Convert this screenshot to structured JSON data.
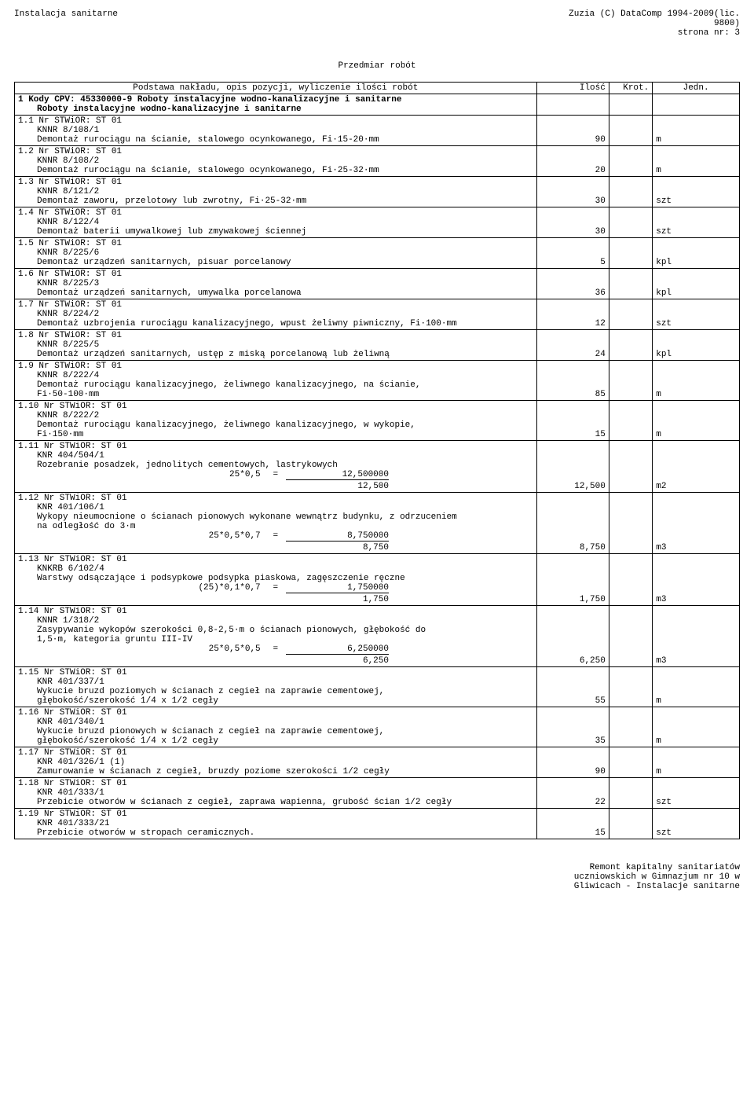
{
  "header": {
    "left": "Instalacja sanitarne",
    "right1": "Zuzia (C) DataComp 1994-2009(lic.",
    "right2": "9800)",
    "right3": "strona nr:    3"
  },
  "title": "Przedmiar robót",
  "columns": {
    "desc": "Podstawa nakładu, opis pozycji, wyliczenie ilości robót",
    "qty": "Ilość",
    "krot": "Krot.",
    "unit": "Jedn."
  },
  "section": {
    "l1": "1 Kody CPV: 45330000-9  Roboty instalacyjne wodno-kanalizacyjne i sanitarne",
    "l2": "Roboty instalacyjne wodno-kanalizacyjne i sanitarne"
  },
  "rows": [
    {
      "num": "1.1 Nr STWiOR: ST 01",
      "code": "KNNR 8/108/1",
      "desc": "Demontaż rurociągu na ścianie, stalowego ocynkowanego, Fi·15-20·mm",
      "qty": "90",
      "unit": "m"
    },
    {
      "num": "1.2 Nr STWiOR: ST 01",
      "code": "KNNR 8/108/2",
      "desc": "Demontaż rurociągu na ścianie, stalowego ocynkowanego, Fi·25-32·mm",
      "qty": "20",
      "unit": "m"
    },
    {
      "num": "1.3 Nr STWiOR: ST 01",
      "code": "KNNR 8/121/2",
      "desc": "Demontaż zaworu, przelotowy lub zwrotny, Fi·25-32·mm",
      "qty": "30",
      "unit": "szt"
    },
    {
      "num": "1.4 Nr STWiOR: ST 01",
      "code": "KNNR 8/122/4",
      "desc": "Demontaż baterii umywalkowej lub zmywakowej ściennej",
      "qty": "30",
      "unit": "szt"
    },
    {
      "num": "1.5 Nr STWiOR: ST 01",
      "code": "KNNR 8/225/6",
      "desc": "Demontaż urządzeń sanitarnych, pisuar porcelanowy",
      "qty": "5",
      "unit": "kpl"
    },
    {
      "num": "1.6 Nr STWiOR: ST 01",
      "code": "KNNR 8/225/3",
      "desc": "Demontaż urządzeń sanitarnych, umywalka porcelanowa",
      "qty": "36",
      "unit": "kpl"
    },
    {
      "num": "1.7 Nr STWiOR: ST 01",
      "code": "KNNR 8/224/2",
      "desc": "Demontaż uzbrojenia rurociągu kanalizacyjnego, wpust żeliwny piwniczny, Fi·100·mm",
      "qty": "12",
      "unit": "szt"
    },
    {
      "num": "1.8 Nr STWiOR: ST 01",
      "code": "KNNR 8/225/5",
      "desc": "Demontaż urządzeń sanitarnych, ustęp z miską porcelanową lub żeliwną",
      "qty": "24",
      "unit": "kpl"
    },
    {
      "num": "1.9 Nr STWiOR: ST 01",
      "code": "KNNR 8/222/4",
      "desc": "Demontaż rurociągu kanalizacyjnego, żeliwnego kanalizacyjnego, na ścianie,",
      "desc2": "Fi·50-100·mm",
      "qty": "85",
      "unit": "m"
    },
    {
      "num": "1.10 Nr STWiOR: ST 01",
      "code": "KNNR 8/222/2",
      "desc": "Demontaż rurociągu kanalizacyjnego, żeliwnego kanalizacyjnego, w wykopie,",
      "desc2": "Fi·150·mm",
      "qty": "15",
      "unit": "m"
    },
    {
      "num": "1.11 Nr STWiOR: ST 01",
      "code": "KNR 404/504/1",
      "desc": "Rozebranie posadzek, jednolitych cementowych, lastrykowych",
      "calc_expr": "25*0,5",
      "calc_val": "12,500000",
      "sum": "12,500",
      "qty": "12,500",
      "unit": "m2"
    },
    {
      "num": "1.12 Nr STWiOR: ST 01",
      "code": "KNR 401/106/1",
      "desc": "Wykopy nieumocnione o ścianach pionowych wykonane wewnątrz budynku, z odrzuceniem",
      "desc2": "na odległość do 3·m",
      "calc_expr": "25*0,5*0,7",
      "calc_val": "8,750000",
      "sum": "8,750",
      "qty": "8,750",
      "unit": "m3"
    },
    {
      "num": "1.13 Nr STWiOR: ST 01",
      "code": "KNKRB 6/102/4",
      "desc": "Warstwy odsączające i podsypkowe podsypka piaskowa, zagęszczenie ręczne",
      "calc_expr": "(25)*0,1*0,7",
      "calc_val": "1,750000",
      "sum": "1,750",
      "qty": "1,750",
      "unit": "m3"
    },
    {
      "num": "1.14 Nr STWiOR: ST 01",
      "code": "KNNR 1/318/2",
      "desc": "Zasypywanie wykopów szerokości 0,8-2,5·m o ścianach pionowych, głębokość do",
      "desc2": "1,5·m, kategoria gruntu III-IV",
      "calc_expr": "25*0,5*0,5",
      "calc_val": "6,250000",
      "sum": "6,250",
      "qty": "6,250",
      "unit": "m3"
    },
    {
      "num": "1.15 Nr STWiOR: ST 01",
      "code": "KNR 401/337/1",
      "desc": "Wykucie bruzd poziomych w ścianach z cegieł na zaprawie cementowej,",
      "desc2": "głębokość/szerokość 1/4 x 1/2 cegły",
      "qty": "55",
      "unit": "m"
    },
    {
      "num": "1.16 Nr STWiOR: ST 01",
      "code": "KNR 401/340/1",
      "desc": "Wykucie bruzd pionowych w ścianach z cegieł na zaprawie cementowej,",
      "desc2": "głębokość/szerokość 1/4 x 1/2 cegły",
      "qty": "35",
      "unit": "m"
    },
    {
      "num": "1.17 Nr STWiOR: ST 01",
      "code": "KNR 401/326/1 (1)",
      "desc": "Zamurowanie w ścianach z cegieł, bruzdy poziome szerokości 1/2 cegły",
      "qty": "90",
      "unit": "m"
    },
    {
      "num": "1.18 Nr STWiOR: ST 01",
      "code": "KNR 401/333/1",
      "desc": "Przebicie otworów w ścianach z cegieł, zaprawa wapienna, grubość ścian 1/2 cegły",
      "qty": "22",
      "unit": "szt"
    },
    {
      "num": "1.19 Nr STWiOR: ST 01",
      "code": "KNR 401/333/21",
      "desc": "Przebicie otworów w stropach ceramicznych.",
      "qty": "15",
      "unit": "szt"
    }
  ],
  "footer": {
    "l1": "Remont kapitalny sanitariatów",
    "l2": "uczniowskich w Gimnazjum nr 10 w",
    "l3": "Gliwicach - Instalacje sanitarne"
  }
}
